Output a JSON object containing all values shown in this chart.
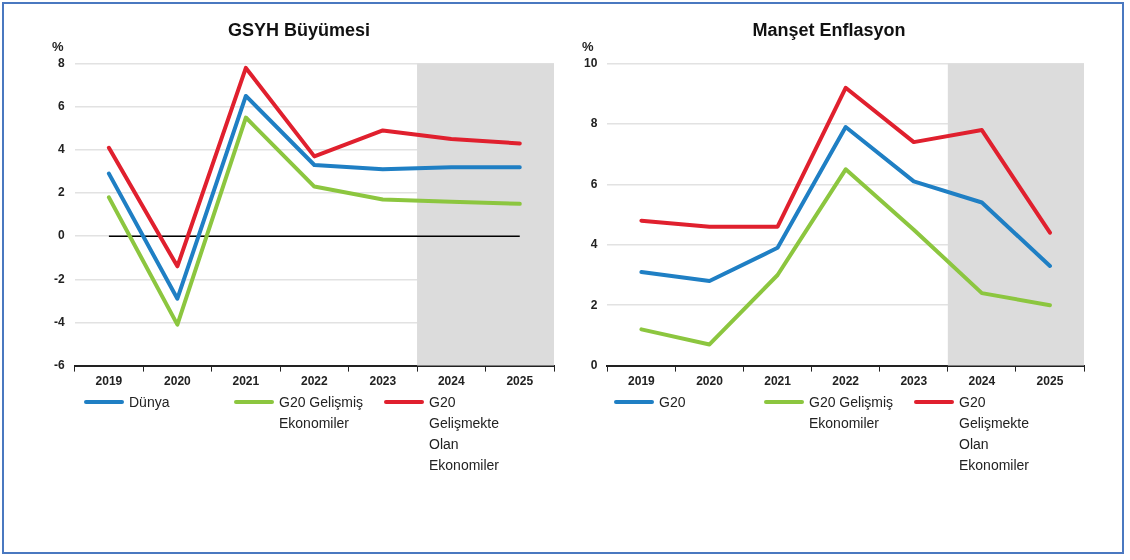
{
  "chart_data": [
    {
      "type": "line",
      "title": "GSYH Büyümesi",
      "ylabel": "%",
      "categories": [
        "2019",
        "2020",
        "2021",
        "2022",
        "2023",
        "2024",
        "2025"
      ],
      "ylim": [
        -6,
        8
      ],
      "yticks": [
        -6,
        -4,
        -2,
        0,
        2,
        4,
        6,
        8
      ],
      "grid": "y",
      "legend": "bottom",
      "marker": "none",
      "line_style": "solid",
      "series": [
        {
          "name": "Dünya",
          "color": "#1f7fc4",
          "values": [
            2.9,
            -2.9,
            6.5,
            3.3,
            3.1,
            3.2,
            3.2
          ]
        },
        {
          "name": "G20 Gelişmiş Ekonomiler",
          "color": "#8cc63f",
          "values": [
            1.8,
            -4.1,
            5.5,
            2.3,
            1.7,
            1.6,
            1.5
          ]
        },
        {
          "name": "G20 Gelişmekte Olan Ekonomiler",
          "color": "#e0202e",
          "values": [
            4.1,
            -1.4,
            7.8,
            3.7,
            4.9,
            4.5,
            4.3
          ]
        }
      ],
      "bands": [
        {
          "axis": "x",
          "from": "2024",
          "to": "2025",
          "color": "#dcdcdc"
        }
      ],
      "ref_lines": [
        {
          "axis": "y",
          "value": 0,
          "color": "#000000"
        }
      ]
    },
    {
      "type": "line",
      "title": "Manşet Enflasyon",
      "ylabel": "%",
      "categories": [
        "2019",
        "2020",
        "2021",
        "2022",
        "2023",
        "2024",
        "2025"
      ],
      "ylim": [
        0,
        10
      ],
      "yticks": [
        0,
        2,
        4,
        6,
        8,
        10
      ],
      "grid": "y",
      "legend": "bottom",
      "marker": "none",
      "line_style": "solid",
      "series": [
        {
          "name": "G20",
          "color": "#1f7fc4",
          "values": [
            3.1,
            2.8,
            3.9,
            7.9,
            6.1,
            5.4,
            3.3
          ]
        },
        {
          "name": "G20 Gelişmiş Ekonomiler",
          "color": "#8cc63f",
          "values": [
            1.2,
            0.7,
            3.0,
            6.5,
            4.5,
            2.4,
            2.0
          ]
        },
        {
          "name": "G20 Gelişmekte Olan Ekonomiler",
          "color": "#e0202e",
          "values": [
            4.8,
            4.6,
            4.6,
            9.2,
            7.4,
            7.8,
            4.4
          ]
        }
      ],
      "bands": [
        {
          "axis": "x",
          "from": "2024",
          "to": "2025",
          "color": "#dcdcdc"
        }
      ]
    }
  ]
}
